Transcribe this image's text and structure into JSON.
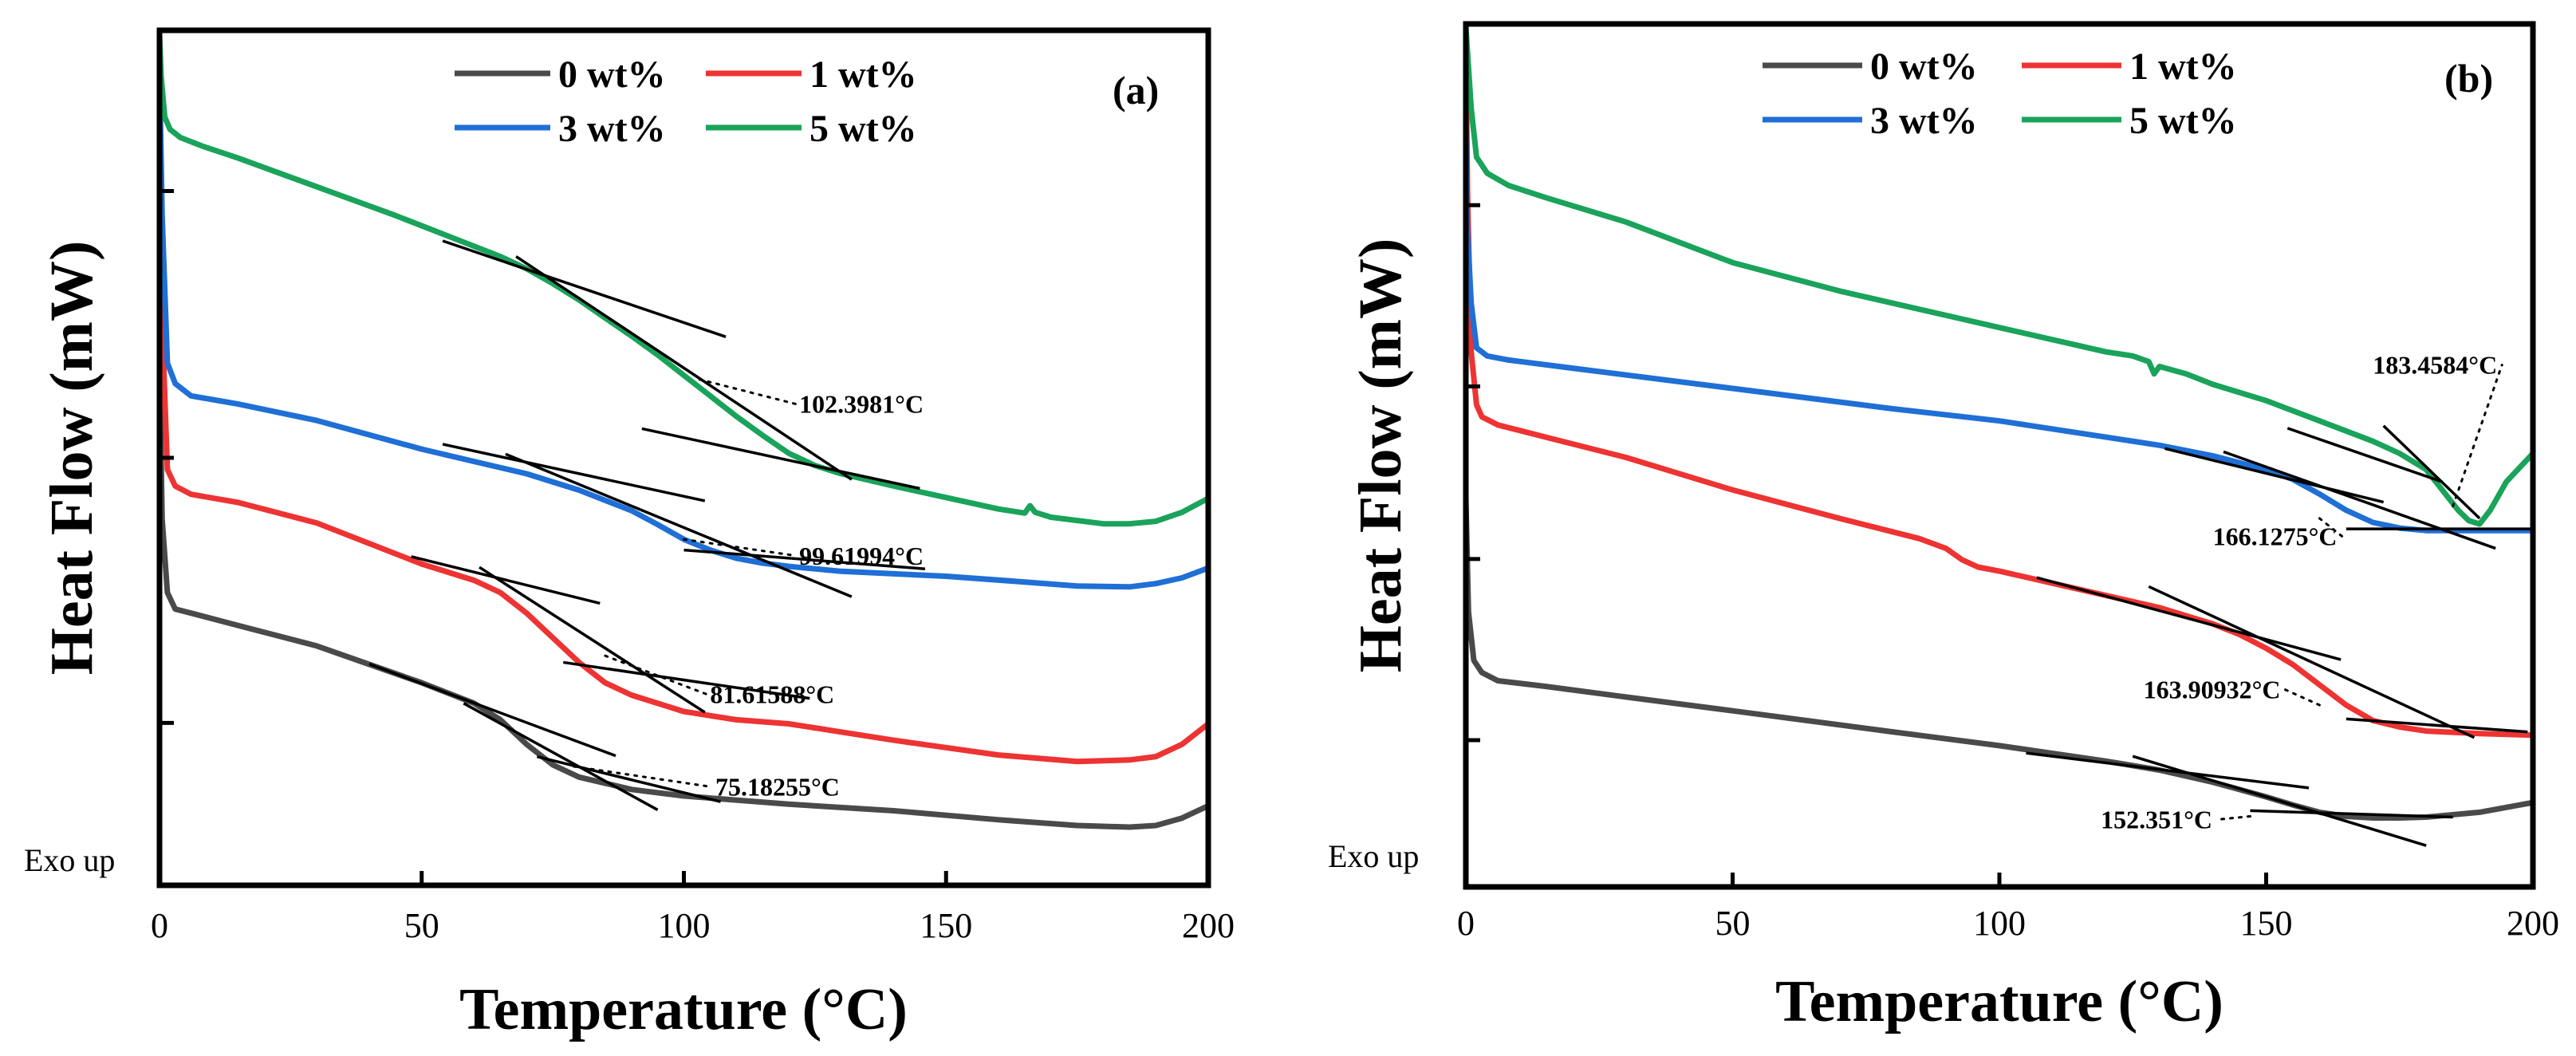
{
  "chart_data": [
    {
      "type": "line",
      "panel_label": "(a)",
      "xlabel": "Temperature (°C)",
      "ylabel": "Heat Flow (mW)",
      "y_note": "Exo up",
      "xlim": [
        0,
        200
      ],
      "ylim": [
        0,
        100
      ],
      "xticks": [
        "0",
        "50",
        "100",
        "150",
        "200"
      ],
      "legend": [
        "0 wt%",
        "1 wt%",
        "3 wt%",
        "5 wt%"
      ],
      "series": [
        {
          "name": "0 wt%",
          "color": "#4a4a4a",
          "x": [
            0,
            0.5,
            1.5,
            3,
            6,
            15,
            30,
            50,
            60,
            65,
            70,
            75,
            80,
            90,
            100,
            120,
            140,
            160,
            175,
            185,
            190,
            195,
            200
          ],
          "y": [
            60,
            41,
            32,
            30,
            29.5,
            28,
            25.5,
            21,
            18.5,
            16.5,
            13.5,
            11,
            9.5,
            8,
            7.2,
            6.2,
            5.4,
            4.3,
            3.6,
            3.4,
            3.6,
            4.5,
            6
          ]
        },
        {
          "name": "1 wt%",
          "color": "#ee3333",
          "x": [
            0,
            0.5,
            1.5,
            3,
            6,
            15,
            30,
            50,
            60,
            65,
            70,
            75,
            80,
            85,
            90,
            100,
            110,
            120,
            130,
            140,
            160,
            175,
            185,
            190,
            195,
            200
          ],
          "y": [
            88,
            65,
            47,
            45,
            44,
            43,
            40.5,
            35.5,
            33.5,
            32,
            29.5,
            26.5,
            23.5,
            21,
            19.5,
            17.5,
            16.5,
            16,
            15,
            14,
            12.2,
            11.4,
            11.6,
            12,
            13.5,
            16
          ]
        },
        {
          "name": "3 wt%",
          "color": "#1f6fd6",
          "x": [
            0,
            0.5,
            1.5,
            3,
            6,
            15,
            30,
            50,
            60,
            70,
            80,
            90,
            95,
            100,
            105,
            110,
            115,
            120,
            130,
            140,
            150,
            165,
            175,
            185,
            190,
            195,
            200
          ],
          "y": [
            96,
            78,
            60,
            57.5,
            56,
            55,
            53,
            49.5,
            48,
            46.5,
            44.5,
            42,
            40.3,
            38.5,
            37.2,
            36.2,
            35.6,
            35.2,
            34.6,
            34.3,
            34,
            33.3,
            32.8,
            32.7,
            33.1,
            33.8,
            35
          ]
        },
        {
          "name": "5 wt%",
          "color": "#1aa35a",
          "x": [
            0,
            0.3,
            1,
            2,
            4,
            8,
            15,
            30,
            45,
            55,
            65,
            70,
            75,
            80,
            85,
            90,
            95,
            100,
            105,
            110,
            115,
            120,
            125,
            130,
            140,
            150,
            160,
            165,
            166,
            167,
            170,
            180,
            185,
            190,
            195,
            200
          ],
          "y": [
            100,
            95,
            90,
            88.5,
            87.5,
            86.5,
            85,
            81.5,
            78,
            75.5,
            73,
            71.5,
            69.7,
            67.7,
            65.5,
            63.3,
            61,
            58.5,
            56,
            53.5,
            51.2,
            49,
            47.5,
            46.5,
            45,
            43.6,
            42.2,
            41.7,
            42.6,
            41.8,
            41.2,
            40.4,
            40.4,
            40.7,
            41.8,
            43.5
          ]
        }
      ],
      "tangent_lines": [
        {
          "series": "5 wt%",
          "x1": 54,
          "y1": 74.9,
          "x2": 108,
          "y2": 63.2
        },
        {
          "series": "5 wt%",
          "x1": 68,
          "y1": 73,
          "x2": 132,
          "y2": 45.8
        },
        {
          "series": "5 wt%",
          "x1": 92,
          "y1": 52,
          "x2": 145,
          "y2": 44.7
        },
        {
          "series": "3 wt%",
          "x1": 54,
          "y1": 50.1,
          "x2": 104,
          "y2": 43.2
        },
        {
          "series": "3 wt%",
          "x1": 66,
          "y1": 48.9,
          "x2": 132,
          "y2": 31.5
        },
        {
          "series": "3 wt%",
          "x1": 100,
          "y1": 37.2,
          "x2": 146,
          "y2": 34.9
        },
        {
          "series": "1 wt%",
          "x1": 48,
          "y1": 36.4,
          "x2": 84,
          "y2": 30.7
        },
        {
          "series": "1 wt%",
          "x1": 61,
          "y1": 35.1,
          "x2": 104,
          "y2": 17.4
        },
        {
          "series": "1 wt%",
          "x1": 77,
          "y1": 23.5,
          "x2": 124,
          "y2": 19.1
        },
        {
          "series": "0 wt%",
          "x1": 40,
          "y1": 23.3,
          "x2": 87,
          "y2": 12.1
        },
        {
          "series": "0 wt%",
          "x1": 58,
          "y1": 18.5,
          "x2": 95,
          "y2": 5.5
        },
        {
          "series": "0 wt%",
          "x1": 72,
          "y1": 12,
          "x2": 107,
          "y2": 6.5
        }
      ],
      "annotations": [
        {
          "text": "102.3981°C",
          "x": 122,
          "y": 55,
          "point_x": 103,
          "point_y": 58
        },
        {
          "text": "99.61994°C",
          "x": 122,
          "y": 36.5,
          "point_x": 100,
          "point_y": 38.5
        },
        {
          "text": "81.61588°C",
          "x": 105,
          "y": 19.6,
          "point_x": 85,
          "point_y": 24.3
        },
        {
          "text": "75.18255°C",
          "x": 106,
          "y": 8.3,
          "point_x": 79,
          "point_y": 10.8
        }
      ]
    },
    {
      "type": "line",
      "panel_label": "(b)",
      "xlabel": "Temperature (°C)",
      "ylabel": "Heat Flow (mW)",
      "y_note": "Exo up",
      "xlim": [
        0,
        200
      ],
      "ylim": [
        0,
        100
      ],
      "xticks": [
        "0",
        "50",
        "100",
        "150",
        "200"
      ],
      "legend": [
        "0 wt%",
        "1 wt%",
        "3 wt%",
        "5 wt%"
      ],
      "series": [
        {
          "name": "0 wt%",
          "color": "#4a4a4a",
          "x": [
            0,
            0.5,
            1.5,
            3,
            6,
            15,
            30,
            50,
            80,
            100,
            120,
            130,
            140,
            150,
            155,
            160,
            165,
            170,
            175,
            180,
            190,
            200
          ],
          "y": [
            42,
            28,
            22,
            20.5,
            19.5,
            18.8,
            17.5,
            15.8,
            13.2,
            11.5,
            9.6,
            8.5,
            7,
            5.2,
            4.2,
            3.3,
            2.8,
            2.6,
            2.6,
            2.7,
            3.3,
            4.5
          ]
        },
        {
          "name": "1 wt%",
          "color": "#ee3333",
          "x": [
            0,
            0.3,
            1,
            2,
            3,
            6,
            15,
            30,
            50,
            70,
            85,
            90,
            93,
            96,
            100,
            110,
            120,
            130,
            140,
            145,
            150,
            155,
            160,
            165,
            170,
            175,
            180,
            190,
            200
          ],
          "y": [
            100,
            80,
            60,
            53.5,
            52,
            51,
            49.5,
            47,
            43,
            39.5,
            37,
            35.8,
            34.4,
            33.5,
            33,
            31.5,
            30,
            28.5,
            26.5,
            25.2,
            23.5,
            21.5,
            19,
            16.5,
            14.6,
            13.8,
            13.3,
            13,
            12.8
          ]
        },
        {
          "name": "3 wt%",
          "color": "#1f6fd6",
          "x": [
            0,
            0.3,
            1,
            2,
            4,
            8,
            20,
            50,
            80,
            100,
            120,
            130,
            140,
            150,
            155,
            160,
            165,
            170,
            175,
            180,
            190,
            200
          ],
          "y": [
            88,
            75,
            66,
            60.5,
            59.5,
            59,
            58,
            55.5,
            53,
            51.5,
            49.5,
            48.5,
            47.2,
            45.5,
            44.3,
            42.5,
            40.5,
            39,
            38.3,
            38,
            38,
            38
          ]
        },
        {
          "name": "5 wt%",
          "color": "#1aa35a",
          "x": [
            0,
            0.3,
            1,
            2,
            4,
            8,
            15,
            30,
            50,
            70,
            90,
            100,
            110,
            120,
            125,
            128,
            129,
            130,
            135,
            140,
            150,
            160,
            170,
            175,
            180,
            183,
            186,
            188,
            190,
            192,
            195,
            200
          ],
          "y": [
            100,
            97,
            90,
            84,
            82,
            80.5,
            79,
            76,
            71,
            67.5,
            64.5,
            63,
            61.5,
            60,
            59.5,
            58.8,
            57.3,
            58.2,
            57.3,
            56,
            54,
            51.5,
            49,
            47.5,
            45.5,
            43,
            40.5,
            39.2,
            38.8,
            40.5,
            44,
            47.5
          ]
        }
      ],
      "tangent_lines": [
        {
          "series": "5 wt%",
          "x1": 154,
          "y1": 50.6,
          "x2": 183,
          "y2": 44
        },
        {
          "series": "5 wt%",
          "x1": 172,
          "y1": 50.9,
          "x2": 190,
          "y2": 39.5
        },
        {
          "series": "3 wt%",
          "x1": 131,
          "y1": 48.1,
          "x2": 172,
          "y2": 41.5
        },
        {
          "series": "3 wt%",
          "x1": 142,
          "y1": 47.7,
          "x2": 193,
          "y2": 35.8
        },
        {
          "series": "3 wt%",
          "x1": 165,
          "y1": 38.2,
          "x2": 200,
          "y2": 38.2
        },
        {
          "series": "1 wt%",
          "x1": 107,
          "y1": 32.2,
          "x2": 164,
          "y2": 22.1
        },
        {
          "series": "1 wt%",
          "x1": 128,
          "y1": 31.1,
          "x2": 189,
          "y2": 12.5
        },
        {
          "series": "1 wt%",
          "x1": 165,
          "y1": 14.8,
          "x2": 199,
          "y2": 13.2
        },
        {
          "series": "0 wt%",
          "x1": 105,
          "y1": 10.6,
          "x2": 158,
          "y2": 6.3
        },
        {
          "series": "0 wt%",
          "x1": 125,
          "y1": 10.2,
          "x2": 180,
          "y2": -0.8
        },
        {
          "series": "0 wt%",
          "x1": 147,
          "y1": 3.5,
          "x2": 185,
          "y2": 2.7
        }
      ],
      "annotations": [
        {
          "text": "183.4584°C",
          "x": 170,
          "y": 58.4,
          "point_x": 185,
          "point_y": 41
        },
        {
          "text": "166.1275°C",
          "x": 140,
          "y": 37.3,
          "point_x": 160,
          "point_y": 39.5
        },
        {
          "text": "163.90932°C",
          "x": 127,
          "y": 18.4,
          "point_x": 160,
          "point_y": 16.5
        },
        {
          "text": "152.351°C",
          "x": 119,
          "y": 2.4,
          "point_x": 147,
          "point_y": 2.8
        }
      ]
    }
  ]
}
